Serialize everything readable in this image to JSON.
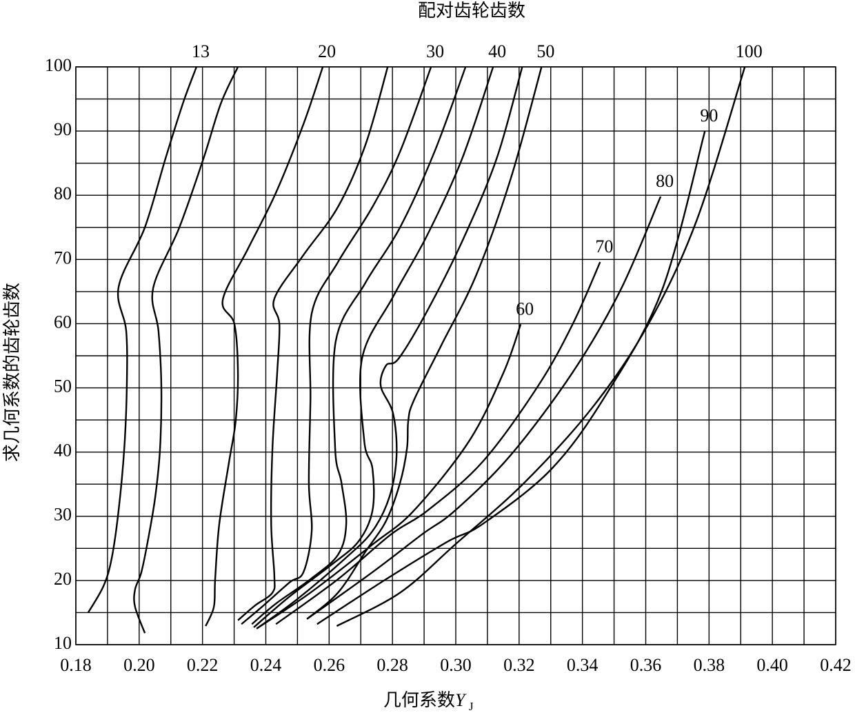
{
  "chart_data": {
    "type": "line",
    "title": "配对齿轮齿数",
    "x_label": {
      "text": "几何系数",
      "symbol": "Y",
      "subscript": "J"
    },
    "y_label": "求几何系数的齿轮齿数",
    "xlim": [
      0.18,
      0.42
    ],
    "ylim": [
      10,
      100
    ],
    "xticks": [
      0.18,
      {
        "value": 0.2,
        "label": "0.20"
      },
      0.22,
      0.24,
      0.26,
      0.28,
      {
        "value": 0.3,
        "label": "0.30"
      },
      0.32,
      0.34,
      0.36,
      0.38,
      {
        "value": 0.4,
        "label": "0.40"
      },
      0.42
    ],
    "yticks": [
      10,
      20,
      30,
      40,
      50,
      60,
      70,
      80,
      90,
      100
    ],
    "xminor": [
      0.19,
      0.21,
      0.23,
      0.25,
      0.27,
      0.29,
      0.31,
      0.33,
      0.35,
      0.37,
      0.39,
      0.41
    ],
    "yminor": [
      15,
      25,
      35,
      45,
      55,
      65,
      75,
      85,
      95
    ],
    "grid": true,
    "color": "#000000",
    "series": [
      {
        "name": "13",
        "x": [
          0.1839,
          0.1887,
          0.1913,
          0.1935,
          0.1953,
          0.1961,
          0.1959,
          0.1935,
          0.2018,
          0.2083,
          0.2138,
          0.2181
        ],
        "values": [
          15.0,
          19.1,
          23.4,
          30.9,
          40.6,
          50.3,
          58.9,
          65.7,
          75.0,
          85.7,
          94.3,
          100
        ]
      },
      {
        "x": [
          0.2018,
          0.1987,
          0.1987,
          0.2007,
          0.2029,
          0.2051,
          0.2066,
          0.207,
          0.2061,
          0.2044,
          0.2127,
          0.2203,
          0.2258,
          0.2312
        ],
        "values": [
          11.8,
          15.9,
          18.6,
          21.3,
          26.6,
          33.1,
          40.6,
          50.3,
          58.9,
          65.5,
          75.0,
          85.7,
          94.3,
          100
        ]
      },
      {
        "name": "20",
        "x": [
          0.221,
          0.2236,
          0.224,
          0.2253,
          0.2284,
          0.2305,
          0.2312,
          0.2301,
          0.2264,
          0.2345,
          0.2432,
          0.2519,
          0.258
        ],
        "values": [
          12.9,
          15.9,
          20.2,
          28.8,
          38.5,
          44.9,
          52.4,
          59.9,
          63.7,
          71.8,
          80.4,
          91.1,
          100
        ]
      },
      {
        "x": [
          0.2312,
          0.2366,
          0.2421,
          0.2427,
          0.2417,
          0.2421,
          0.2436,
          0.2443,
          0.2427,
          0.2519,
          0.2628,
          0.2715,
          0.2785
        ],
        "values": [
          13.8,
          16.1,
          18.1,
          20.7,
          28.8,
          40.6,
          52.4,
          59.9,
          63.9,
          70.7,
          78.2,
          87.9,
          100
        ]
      },
      {
        "name": "30",
        "x": [
          0.2323,
          0.2388,
          0.2475,
          0.2519,
          0.2545,
          0.2536,
          0.2541,
          0.2545,
          0.2628,
          0.2737,
          0.2824,
          0.2922
        ],
        "values": [
          13.2,
          15.9,
          19.7,
          21.3,
          27.7,
          35.2,
          48.1,
          61.6,
          69.6,
          78.2,
          86.8,
          100
        ]
      },
      {
        "x": [
          0.2356,
          0.2432,
          0.2541,
          0.2628,
          0.2654,
          0.2639,
          0.2619,
          0.2621,
          0.2715,
          0.2824,
          0.2933,
          0.3031
        ],
        "values": [
          13.2,
          16.4,
          20.2,
          24.0,
          28.8,
          35.2,
          40.6,
          57.3,
          66.4,
          75.0,
          86.8,
          100
        ]
      },
      {
        "name": "40",
        "x": [
          0.2362,
          0.2475,
          0.2606,
          0.2693,
          0.2737,
          0.2737,
          0.2711,
          0.2704,
          0.2802,
          0.2911,
          0.302,
          0.3118
        ],
        "values": [
          12.7,
          17.5,
          22.4,
          26.1,
          30.9,
          37.4,
          41.7,
          54.6,
          64.2,
          73.9,
          85.7,
          100
        ]
      },
      {
        "x": [
          0.2371,
          0.2497,
          0.265,
          0.2737,
          0.2791,
          0.2813,
          0.2802,
          0.2763,
          0.278,
          0.282,
          0.2911,
          0.302,
          0.3129,
          0.321
        ],
        "values": [
          12.5,
          17.0,
          23.4,
          27.7,
          33.1,
          39.5,
          46.0,
          50.3,
          53.5,
          54.6,
          62.1,
          72.8,
          85.7,
          100
        ]
      },
      {
        "name": "50",
        "x": [
          0.253,
          0.2628,
          0.2715,
          0.278,
          0.2824,
          0.2846,
          0.285,
          0.2868,
          0.2955,
          0.3064,
          0.3173,
          0.3271
        ],
        "values": [
          14.0,
          18.1,
          24.5,
          29.3,
          35.2,
          40.6,
          44.9,
          48.1,
          56.7,
          67.5,
          82.5,
          100
        ]
      },
      {
        "name": "60",
        "x": [
          0.2371,
          0.2541,
          0.2737,
          0.2868,
          0.3042,
          0.3151,
          0.3205
        ],
        "values": [
          12.5,
          18.1,
          25.6,
          30.9,
          41.7,
          52.4,
          59.9
        ]
      },
      {
        "name": "70",
        "x": [
          0.2432,
          0.2628,
          0.2796,
          0.2911,
          0.3085,
          0.326,
          0.3369,
          0.3456
        ],
        "values": [
          13.2,
          20.2,
          27.2,
          30.9,
          38.5,
          50.3,
          59.9,
          69.6
        ]
      },
      {
        "name": "80",
        "x": [
          0.253,
          0.2737,
          0.2894,
          0.2998,
          0.3173,
          0.3369,
          0.3521,
          0.3647
        ],
        "values": [
          14.0,
          21.3,
          27.2,
          30.9,
          39.5,
          52.4,
          65.3,
          79.8
        ]
      },
      {
        "name": "90",
        "x": [
          0.2562,
          0.278,
          0.2976,
          0.3085,
          0.3303,
          0.3478,
          0.3652,
          0.3787
        ],
        "values": [
          13.2,
          20.2,
          26.1,
          28.8,
          37.4,
          49.2,
          65.3,
          90.0
        ]
      },
      {
        "name": "100",
        "x": [
          0.2624,
          0.2824,
          0.2998,
          0.3216,
          0.3434,
          0.3608,
          0.3761,
          0.3913
        ],
        "values": [
          12.9,
          18.1,
          25.6,
          35.2,
          47.1,
          59.9,
          76.1,
          100
        ]
      }
    ]
  }
}
